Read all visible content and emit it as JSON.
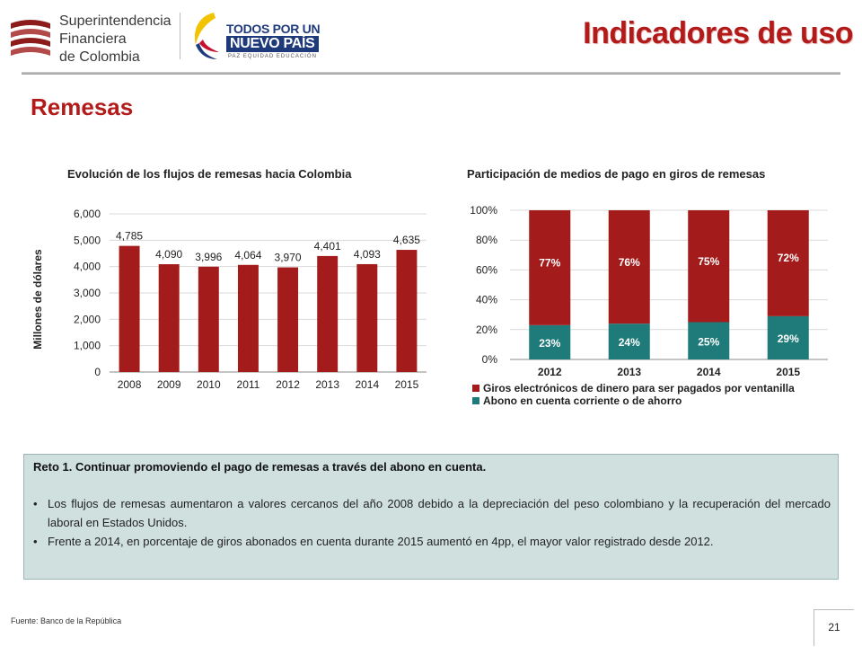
{
  "header": {
    "org_logo": {
      "line1": "Superintendencia",
      "line2": "Financiera",
      "line3": "de Colombia"
    },
    "gov_logo": {
      "line1": "TODOS POR UN",
      "line2": "NUEVO PAÍS",
      "line3": "PAZ EQUIDAD EDUCACIÓN"
    },
    "page_title": "Indicadores de uso"
  },
  "section_title": "Remesas",
  "colors": {
    "accent_red": "#b31b1b",
    "bar_red": "#a31b1b",
    "teal": "#1f7b7a",
    "box_bg": "#cfe0df"
  },
  "chart_data": [
    {
      "type": "bar",
      "title": "Evolución de los flujos de remesas hacia Colombia",
      "ylabel": "Millones de dólares",
      "xlabel": "",
      "categories": [
        "2008",
        "2009",
        "2010",
        "2011",
        "2012",
        "2013",
        "2014",
        "2015"
      ],
      "values": [
        4785,
        4090,
        3996,
        4064,
        3970,
        4401,
        4093,
        4635
      ],
      "value_labels": [
        "4,785",
        "4,090",
        "3,996",
        "4,064",
        "3,970",
        "4,401",
        "4,093",
        "4,635"
      ],
      "ylim": [
        0,
        6000
      ],
      "yticks": [
        0,
        1000,
        2000,
        3000,
        4000,
        5000,
        6000
      ],
      "ytick_labels": [
        "0",
        "1,000",
        "2,000",
        "3,000",
        "4,000",
        "5,000",
        "6,000"
      ],
      "grid": true
    },
    {
      "type": "bar",
      "stacked": true,
      "title": "Participación de medios de pago en giros de remesas",
      "categories": [
        "2012",
        "2013",
        "2014",
        "2015"
      ],
      "series": [
        {
          "name": "Abono en cuenta corriente o de ahorro",
          "values": [
            23,
            24,
            25,
            29
          ],
          "labels": [
            "23%",
            "24%",
            "25%",
            "29%"
          ]
        },
        {
          "name": "Giros electrónicos de dinero para ser pagados por ventanilla",
          "values": [
            77,
            76,
            75,
            72
          ],
          "labels": [
            "77%",
            "76%",
            "75%",
            "72%"
          ]
        }
      ],
      "ylim": [
        0,
        100
      ],
      "yticks": [
        0,
        20,
        40,
        60,
        80,
        100
      ],
      "ytick_labels": [
        "0%",
        "20%",
        "40%",
        "60%",
        "80%",
        "100%"
      ],
      "legend": [
        "Giros electrónicos de dinero para ser pagados por ventanilla",
        "Abono en cuenta corriente o de ahorro"
      ],
      "legend_position": "bottom",
      "grid": true
    }
  ],
  "reto": {
    "title": "Reto 1. Continuar promoviendo el pago de remesas a través del abono en cuenta.",
    "bullets": [
      "Los flujos de remesas aumentaron a valores cercanos del año 2008 debido a la depreciación del peso colombiano y la recuperación del mercado laboral en Estados Unidos.",
      "Frente a 2014, en porcentaje de giros abonados en cuenta durante 2015 aumentó en 4pp, el mayor valor registrado desde 2012."
    ],
    "bullet_symbol": "•"
  },
  "footer": {
    "source": "Fuente: Banco de la República",
    "page_number": "21"
  }
}
